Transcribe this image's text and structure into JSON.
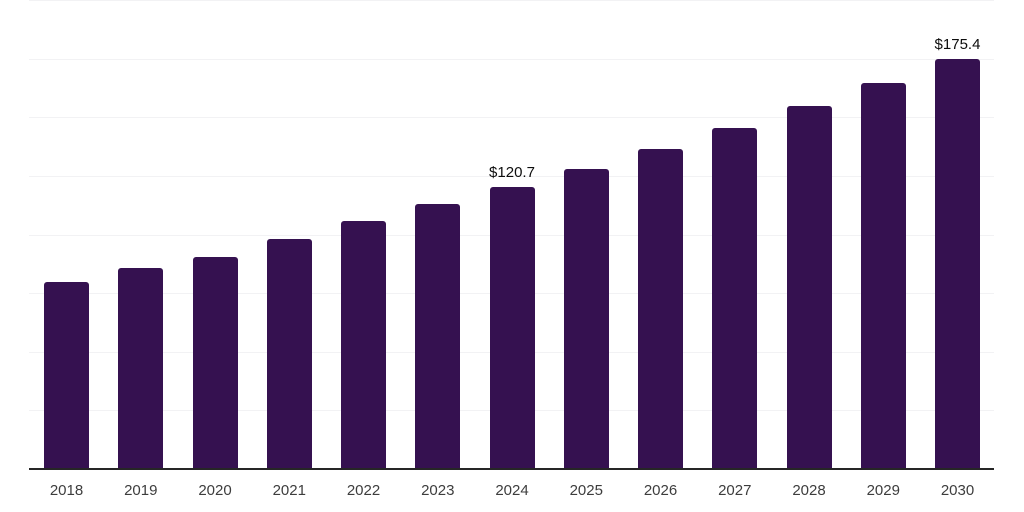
{
  "chart_data": {
    "type": "bar",
    "title": "",
    "xlabel": "",
    "ylabel": "",
    "categories": [
      "2018",
      "2019",
      "2020",
      "2021",
      "2022",
      "2023",
      "2024",
      "2025",
      "2026",
      "2027",
      "2028",
      "2029",
      "2030"
    ],
    "values": [
      80.1,
      86.1,
      90.8,
      98.4,
      106.1,
      113.3,
      120.7,
      128.4,
      136.8,
      145.7,
      155.1,
      164.9,
      175.4
    ],
    "value_labels": [
      null,
      null,
      null,
      null,
      null,
      null,
      "$120.7",
      null,
      null,
      null,
      null,
      null,
      "$175.4"
    ],
    "ylim": [
      0,
      200
    ],
    "gridline_step": 25,
    "grid": "horizontal-only",
    "legend": "none",
    "y_tick_labels_visible": false,
    "currency_prefix": "$"
  },
  "style": {
    "bar_color": "#351150",
    "gridline_color": "#f2f2f4",
    "axis_line_color": "#262626",
    "value_label_color": "#0d0d0d",
    "tick_label_color": "#3d3d3d",
    "background_color": "#ffffff"
  }
}
